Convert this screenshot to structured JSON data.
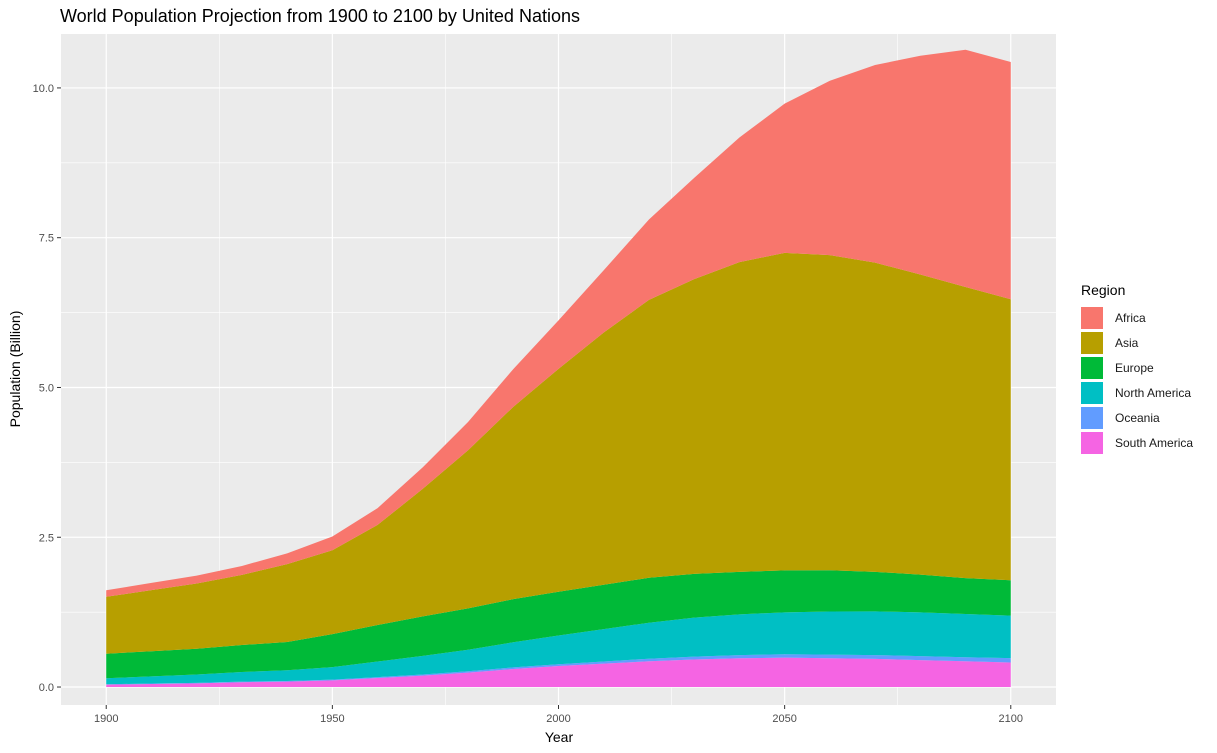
{
  "chart_data": {
    "type": "area",
    "stacked": true,
    "title": "World Population Projection from 1900 to 2100 by United Nations",
    "xlabel": "Year",
    "ylabel": "Population (Billion)",
    "xlim": [
      1890,
      2110
    ],
    "ylim": [
      -0.3,
      10.9
    ],
    "x_ticks": [
      1900,
      1950,
      2000,
      2050,
      2100
    ],
    "x_tick_labels": [
      "1900",
      "1950",
      "2000",
      "2050",
      "2100"
    ],
    "y_ticks": [
      0,
      2.5,
      5,
      7.5,
      10
    ],
    "y_tick_labels": [
      "0.0",
      "2.5",
      "5.0",
      "7.5",
      "10.0"
    ],
    "grid": true,
    "legend": {
      "title": "Region",
      "position": "right"
    },
    "x": [
      1900,
      1910,
      1920,
      1930,
      1940,
      1950,
      1960,
      1970,
      1980,
      1990,
      2000,
      2010,
      2020,
      2030,
      2040,
      2050,
      2060,
      2070,
      2080,
      2090,
      2100
    ],
    "series": [
      {
        "name": "Africa",
        "color": "#F8766D",
        "values": [
          0.11,
          0.12,
          0.13,
          0.15,
          0.18,
          0.23,
          0.28,
          0.36,
          0.47,
          0.63,
          0.81,
          1.04,
          1.34,
          1.69,
          2.08,
          2.49,
          2.91,
          3.3,
          3.65,
          3.96,
          3.96
        ]
      },
      {
        "name": "Asia",
        "color": "#B79F00",
        "values": [
          0.95,
          1.02,
          1.09,
          1.17,
          1.3,
          1.4,
          1.67,
          2.13,
          2.64,
          3.21,
          3.72,
          4.21,
          4.64,
          4.92,
          5.17,
          5.3,
          5.26,
          5.16,
          5.01,
          4.86,
          4.69
        ]
      },
      {
        "name": "Europe",
        "color": "#00BA38",
        "values": [
          0.41,
          0.42,
          0.43,
          0.45,
          0.47,
          0.55,
          0.61,
          0.66,
          0.69,
          0.72,
          0.73,
          0.74,
          0.75,
          0.73,
          0.71,
          0.7,
          0.69,
          0.66,
          0.63,
          0.6,
          0.59
        ]
      },
      {
        "name": "North America",
        "color": "#00BFC4",
        "values": [
          0.1,
          0.12,
          0.14,
          0.16,
          0.18,
          0.21,
          0.26,
          0.31,
          0.36,
          0.42,
          0.48,
          0.54,
          0.6,
          0.65,
          0.68,
          0.7,
          0.72,
          0.73,
          0.73,
          0.72,
          0.71
        ]
      },
      {
        "name": "Oceania",
        "color": "#619CFF",
        "values": [
          0.006,
          0.008,
          0.009,
          0.011,
          0.011,
          0.013,
          0.016,
          0.019,
          0.023,
          0.027,
          0.031,
          0.037,
          0.043,
          0.048,
          0.053,
          0.057,
          0.06,
          0.063,
          0.066,
          0.068,
          0.072
        ]
      },
      {
        "name": "South America",
        "color": "#F564E3",
        "values": [
          0.04,
          0.05,
          0.06,
          0.08,
          0.09,
          0.11,
          0.15,
          0.19,
          0.24,
          0.3,
          0.35,
          0.39,
          0.43,
          0.46,
          0.48,
          0.49,
          0.48,
          0.47,
          0.45,
          0.43,
          0.41
        ]
      }
    ]
  }
}
